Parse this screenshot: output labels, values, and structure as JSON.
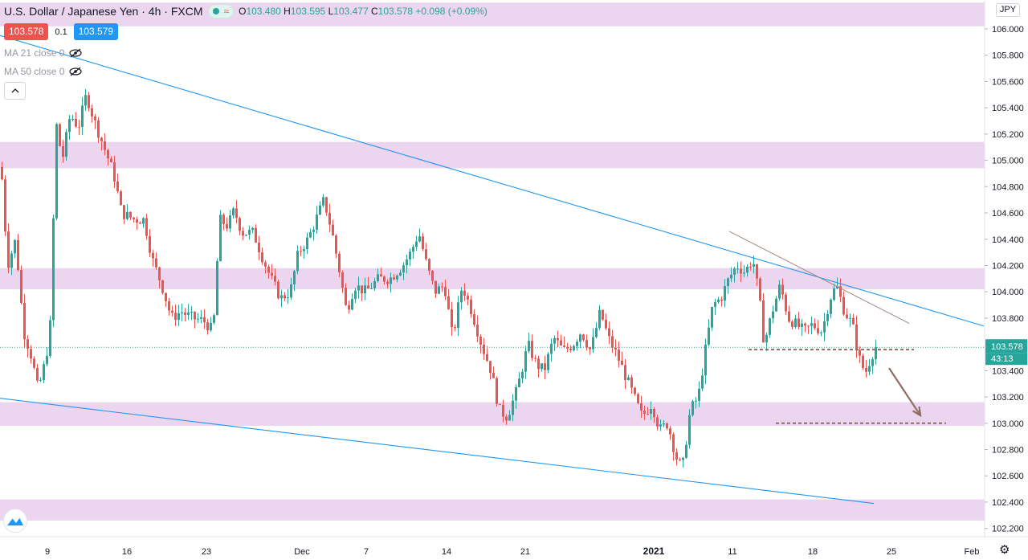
{
  "header": {
    "title": "U.S. Dollar / Japanese Yen",
    "interval": "4h",
    "source": "FXCM",
    "ohlc": {
      "o_label": "O",
      "o": "103.480",
      "h_label": "H",
      "h": "103.595",
      "l_label": "L",
      "l": "103.477",
      "c_label": "C",
      "c": "103.578",
      "change": "+0.098 (+0.09%)"
    }
  },
  "trade": {
    "sell": "103.578",
    "spread": "0.1",
    "buy": "103.579"
  },
  "indicators": [
    {
      "label": "MA 21 close 0"
    },
    {
      "label": "MA 50 close 0"
    }
  ],
  "currency_badge": "JPY",
  "colors": {
    "up": "#26a69a",
    "down": "#ef5350",
    "zone": "#e1bee7",
    "trendline": "#2196f3",
    "pattern_line": "#a1887f",
    "dashed_level": "#8d6e63",
    "current_price": "#26a69a"
  },
  "chart_data": {
    "type": "candlestick",
    "symbol": "USDJPY",
    "timeframe": "4h",
    "ylim": [
      102.15,
      106.25
    ],
    "y_ticks": [
      "106.000",
      "105.800",
      "105.600",
      "105.400",
      "105.200",
      "105.000",
      "104.800",
      "104.600",
      "104.400",
      "104.200",
      "104.000",
      "103.800",
      "103.400",
      "103.200",
      "103.000",
      "102.800",
      "102.600",
      "102.400",
      "102.200"
    ],
    "x_ticks": [
      "9",
      "16",
      "23",
      "Dec",
      "7",
      "14",
      "21",
      "2021",
      "11",
      "18",
      "25",
      "Feb"
    ],
    "current_price": "103.578",
    "countdown": "43:13",
    "zones": [
      {
        "low": 106.02,
        "high": 106.2
      },
      {
        "low": 104.94,
        "high": 105.14
      },
      {
        "low": 104.02,
        "high": 104.18
      },
      {
        "low": 102.98,
        "high": 103.16
      },
      {
        "low": 102.26,
        "high": 102.42
      }
    ],
    "trendlines": [
      {
        "kind": "upper-channel",
        "from": {
          "t": 0,
          "p": 105.95
        },
        "to": {
          "t": 1225,
          "p": 103.74
        }
      },
      {
        "kind": "lower-channel",
        "from": {
          "t": 0,
          "p": 103.19
        },
        "to": {
          "t": 1088,
          "p": 102.39
        }
      },
      {
        "kind": "minor-resistance",
        "from": {
          "t": 908,
          "p": 104.46
        },
        "to": {
          "t": 1132,
          "p": 103.76
        }
      }
    ],
    "levels": [
      {
        "kind": "dashed-support",
        "price": 103.56,
        "from_t": 932,
        "to_t": 1138
      },
      {
        "kind": "dashed-target",
        "price": 103.0,
        "from_t": 966,
        "to_t": 1178
      }
    ],
    "arrow": {
      "from": {
        "t": 1107,
        "p": 103.42
      },
      "to": {
        "t": 1146,
        "p": 103.06
      }
    },
    "anchors": [
      {
        "t": 0,
        "p": 104.95
      },
      {
        "t": 8,
        "p": 104.2
      },
      {
        "t": 18,
        "p": 104.4
      },
      {
        "t": 28,
        "p": 103.7
      },
      {
        "t": 38,
        "p": 103.5
      },
      {
        "t": 46,
        "p": 103.25
      },
      {
        "t": 56,
        "p": 103.5
      },
      {
        "t": 62,
        "p": 103.8
      },
      {
        "t": 68,
        "p": 105.3
      },
      {
        "t": 76,
        "p": 105.0
      },
      {
        "t": 86,
        "p": 105.35
      },
      {
        "t": 96,
        "p": 105.25
      },
      {
        "t": 106,
        "p": 105.5
      },
      {
        "t": 116,
        "p": 105.3
      },
      {
        "t": 128,
        "p": 105.1
      },
      {
        "t": 140,
        "p": 104.9
      },
      {
        "t": 150,
        "p": 104.6
      },
      {
        "t": 166,
        "p": 104.55
      },
      {
        "t": 178,
        "p": 104.55
      },
      {
        "t": 188,
        "p": 104.25
      },
      {
        "t": 200,
        "p": 104.05
      },
      {
        "t": 212,
        "p": 103.8
      },
      {
        "t": 224,
        "p": 103.85
      },
      {
        "t": 238,
        "p": 103.8
      },
      {
        "t": 252,
        "p": 103.78
      },
      {
        "t": 264,
        "p": 103.7
      },
      {
        "t": 272,
        "p": 104.55
      },
      {
        "t": 282,
        "p": 104.5
      },
      {
        "t": 290,
        "p": 104.62
      },
      {
        "t": 300,
        "p": 104.45
      },
      {
        "t": 314,
        "p": 104.45
      },
      {
        "t": 326,
        "p": 104.25
      },
      {
        "t": 336,
        "p": 104.1
      },
      {
        "t": 348,
        "p": 103.95
      },
      {
        "t": 360,
        "p": 104.0
      },
      {
        "t": 370,
        "p": 104.3
      },
      {
        "t": 382,
        "p": 104.4
      },
      {
        "t": 392,
        "p": 104.55
      },
      {
        "t": 402,
        "p": 104.7
      },
      {
        "t": 412,
        "p": 104.45
      },
      {
        "t": 420,
        "p": 104.2
      },
      {
        "t": 430,
        "p": 103.85
      },
      {
        "t": 440,
        "p": 104.05
      },
      {
        "t": 454,
        "p": 104.0
      },
      {
        "t": 470,
        "p": 104.1
      },
      {
        "t": 484,
        "p": 104.1
      },
      {
        "t": 500,
        "p": 104.2
      },
      {
        "t": 510,
        "p": 104.3
      },
      {
        "t": 520,
        "p": 104.45
      },
      {
        "t": 530,
        "p": 104.2
      },
      {
        "t": 540,
        "p": 104.0
      },
      {
        "t": 552,
        "p": 104.05
      },
      {
        "t": 562,
        "p": 103.65
      },
      {
        "t": 574,
        "p": 104.05
      },
      {
        "t": 586,
        "p": 103.85
      },
      {
        "t": 598,
        "p": 103.6
      },
      {
        "t": 610,
        "p": 103.4
      },
      {
        "t": 620,
        "p": 103.1
      },
      {
        "t": 630,
        "p": 103.05
      },
      {
        "t": 642,
        "p": 103.25
      },
      {
        "t": 656,
        "p": 103.6
      },
      {
        "t": 666,
        "p": 103.45
      },
      {
        "t": 676,
        "p": 103.4
      },
      {
        "t": 688,
        "p": 103.65
      },
      {
        "t": 700,
        "p": 103.55
      },
      {
        "t": 712,
        "p": 103.6
      },
      {
        "t": 722,
        "p": 103.7
      },
      {
        "t": 734,
        "p": 103.55
      },
      {
        "t": 746,
        "p": 103.85
      },
      {
        "t": 756,
        "p": 103.65
      },
      {
        "t": 768,
        "p": 103.5
      },
      {
        "t": 778,
        "p": 103.35
      },
      {
        "t": 788,
        "p": 103.2
      },
      {
        "t": 798,
        "p": 103.05
      },
      {
        "t": 810,
        "p": 103.15
      },
      {
        "t": 820,
        "p": 102.95
      },
      {
        "t": 830,
        "p": 103.0
      },
      {
        "t": 840,
        "p": 102.75
      },
      {
        "t": 848,
        "p": 102.65
      },
      {
        "t": 858,
        "p": 103.1
      },
      {
        "t": 868,
        "p": 103.2
      },
      {
        "t": 878,
        "p": 103.6
      },
      {
        "t": 886,
        "p": 103.9
      },
      {
        "t": 896,
        "p": 103.95
      },
      {
        "t": 906,
        "p": 104.1
      },
      {
        "t": 916,
        "p": 104.2
      },
      {
        "t": 926,
        "p": 104.15
      },
      {
        "t": 936,
        "p": 104.25
      },
      {
        "t": 944,
        "p": 103.95
      },
      {
        "t": 950,
        "p": 103.6
      },
      {
        "t": 960,
        "p": 103.85
      },
      {
        "t": 970,
        "p": 104.05
      },
      {
        "t": 980,
        "p": 103.8
      },
      {
        "t": 990,
        "p": 103.75
      },
      {
        "t": 1000,
        "p": 103.7
      },
      {
        "t": 1010,
        "p": 103.75
      },
      {
        "t": 1022,
        "p": 103.7
      },
      {
        "t": 1032,
        "p": 103.95
      },
      {
        "t": 1040,
        "p": 104.05
      },
      {
        "t": 1050,
        "p": 103.85
      },
      {
        "t": 1060,
        "p": 103.75
      },
      {
        "t": 1068,
        "p": 103.5
      },
      {
        "t": 1076,
        "p": 103.38
      },
      {
        "t": 1084,
        "p": 103.52
      },
      {
        "t": 1090,
        "p": 103.58
      }
    ]
  }
}
